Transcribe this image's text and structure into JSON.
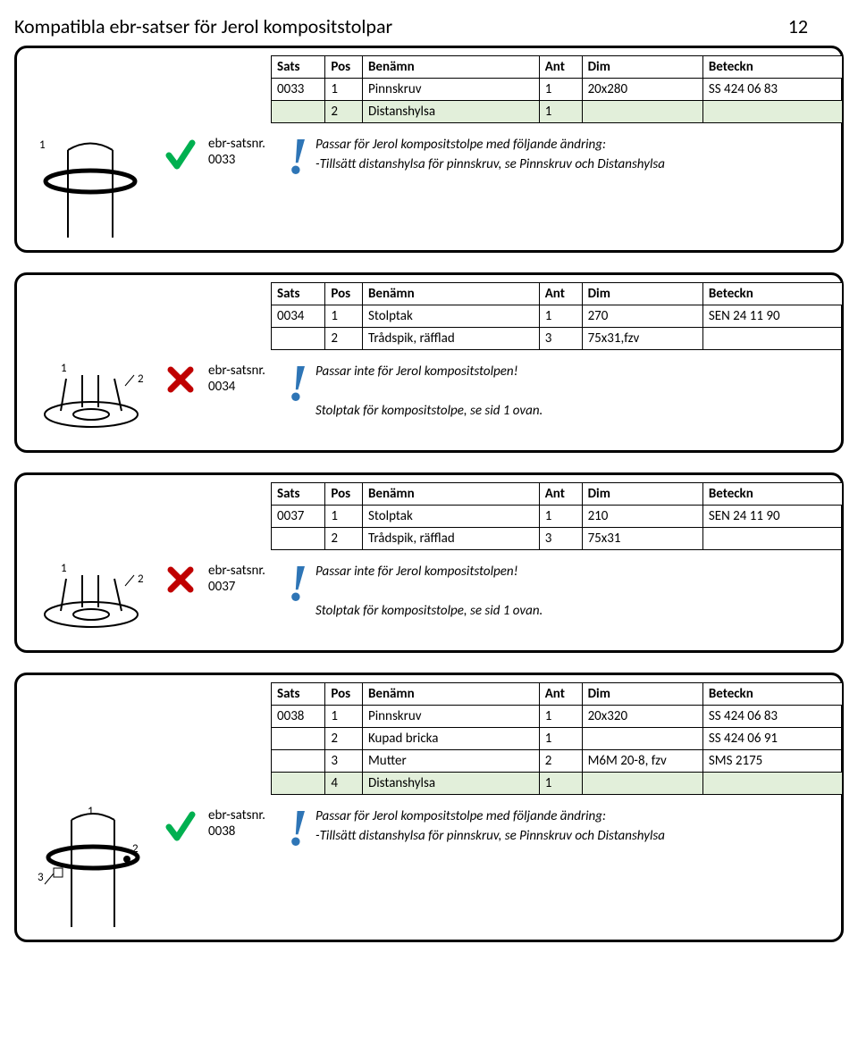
{
  "header": {
    "title": "Kompatibla ebr-satser för Jerol kompositstolpar",
    "page_number": "12"
  },
  "common": {
    "cols": {
      "sats": "Sats",
      "pos": "Pos",
      "benamn": "Benämn",
      "ant": "Ant",
      "dim": "Dim",
      "beteckn": "Beteckn"
    },
    "label_prefix": "ebr-satsnr."
  },
  "cards": [
    {
      "id": "0033",
      "img": "pole",
      "mark": "check",
      "rows": [
        {
          "hl": false,
          "sats": "0033",
          "pos": "1",
          "ben": "Pinnskruv",
          "ant": "1",
          "dim": "20x280",
          "bet": "SS 424 06 83"
        },
        {
          "hl": true,
          "sats": "",
          "pos": "2",
          "ben": "Distanshylsa",
          "ant": "1",
          "dim": "",
          "bet": ""
        }
      ],
      "note": "Passar för Jerol kompositstolpe med följande ändring:\n-Tillsätt distanshylsa för pinnskruv, se Pinnskruv och Distanshylsa"
    },
    {
      "id": "0034",
      "img": "cap",
      "mark": "cross",
      "rows": [
        {
          "hl": false,
          "sats": "0034",
          "pos": "1",
          "ben": "Stolptak",
          "ant": "1",
          "dim": "270",
          "bet": "SEN 24 11 90"
        },
        {
          "hl": false,
          "sats": "",
          "pos": "2",
          "ben": "Trådspik, räfflad",
          "ant": "3",
          "dim": "75x31,fzv",
          "bet": ""
        }
      ],
      "note": "Passar inte för Jerol kompositstolpen!\n\nStolptak för kompositstolpe, se sid 1 ovan."
    },
    {
      "id": "0037",
      "img": "cap",
      "mark": "cross",
      "rows": [
        {
          "hl": false,
          "sats": "0037",
          "pos": "1",
          "ben": "Stolptak",
          "ant": "1",
          "dim": "210",
          "bet": "SEN 24 11 90"
        },
        {
          "hl": false,
          "sats": "",
          "pos": "2",
          "ben": "Trådspik, räfflad",
          "ant": "3",
          "dim": "75x31",
          "bet": ""
        }
      ],
      "note": "Passar inte för Jerol kompositstolpen!\n\nStolptak för kompositstolpe, se sid 1 ovan."
    },
    {
      "id": "0038",
      "img": "pole3",
      "mark": "check",
      "rows": [
        {
          "hl": false,
          "sats": "0038",
          "pos": "1",
          "ben": "Pinnskruv",
          "ant": "1",
          "dim": "20x320",
          "bet": "SS 424 06 83"
        },
        {
          "hl": false,
          "sats": "",
          "pos": "2",
          "ben": "Kupad bricka",
          "ant": "1",
          "dim": "",
          "bet": "SS 424 06 91"
        },
        {
          "hl": false,
          "sats": "",
          "pos": "3",
          "ben": "Mutter",
          "ant": "2",
          "dim": "M6M 20-8, fzv",
          "bet": "SMS 2175"
        },
        {
          "hl": true,
          "sats": "",
          "pos": "4",
          "ben": "Distanshylsa",
          "ant": "1",
          "dim": "",
          "bet": ""
        }
      ],
      "note": "Passar för Jerol kompositstolpe med följande ändring:\n-Tillsätt distanshylsa för pinnskruv, se Pinnskruv och Distanshylsa"
    }
  ],
  "colors": {
    "check": "#00b050",
    "cross": "#c00000",
    "excl": "#2e75b6",
    "row_highlight": "#e2efda"
  }
}
